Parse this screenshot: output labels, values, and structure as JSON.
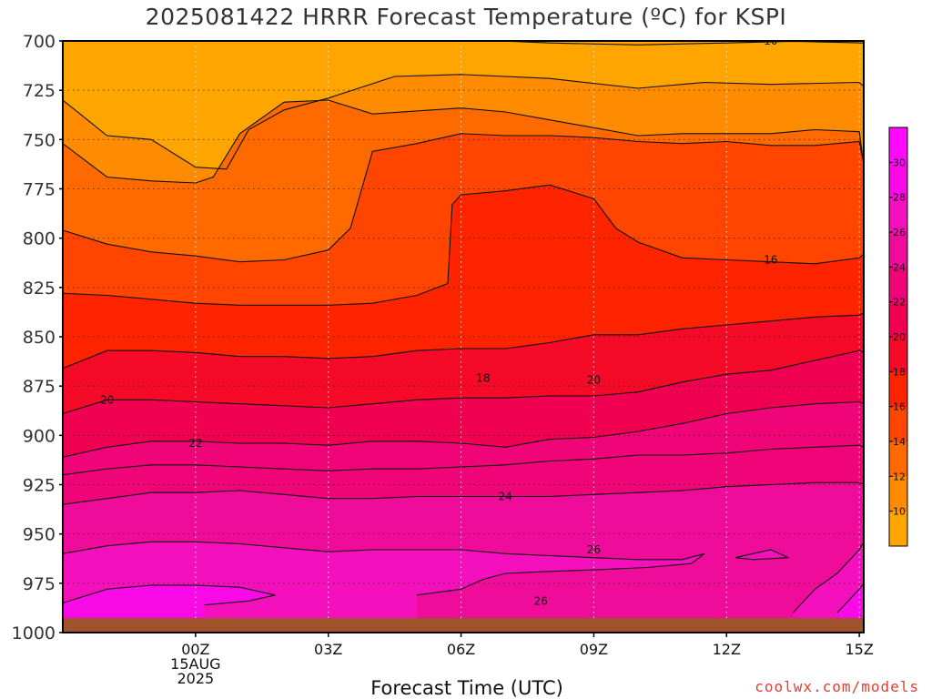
{
  "chart_data": {
    "type": "contour",
    "title": "2025081422 HRRR Forecast Temperature (ºC) for KSPI",
    "xlabel": "Forecast Time (UTC)",
    "ylabel": "",
    "y_axis": "pressure (hPa), inverted",
    "ylim": [
      1000,
      700
    ],
    "y_ticks": [
      700,
      725,
      750,
      775,
      800,
      825,
      850,
      875,
      900,
      925,
      950,
      975,
      1000
    ],
    "xlim_hours": [
      -3,
      15.1
    ],
    "x_ticks": [
      {
        "hour": 0,
        "lines": [
          "00Z",
          "15AUG",
          "2025"
        ]
      },
      {
        "hour": 3,
        "lines": [
          "03Z"
        ]
      },
      {
        "hour": 6,
        "lines": [
          "06Z"
        ]
      },
      {
        "hour": 9,
        "lines": [
          "09Z"
        ]
      },
      {
        "hour": 12,
        "lines": [
          "12Z"
        ]
      },
      {
        "hour": 15,
        "lines": [
          "15Z"
        ]
      }
    ],
    "grid": true,
    "contour_interval": 2,
    "ground_color": "#a0522d",
    "colorbar": {
      "labels": [
        "10",
        "12",
        "14",
        "16",
        "18",
        "20",
        "22",
        "24",
        "26",
        "28",
        "30"
      ],
      "colors": [
        "#ffa500",
        "#ff8c00",
        "#ff6a00",
        "#ff4500",
        "#ff2400",
        "#f50a28",
        "#f00050",
        "#ef0578",
        "#ef0c9b",
        "#f510be",
        "#fa0ae6"
      ],
      "extend_low": "#ffa500",
      "extend_high": "#ff0aff"
    },
    "contours": [
      {
        "label": "10",
        "label_at": [
          13.0,
          700
        ],
        "points": [
          [
            6.9,
            700
          ],
          [
            8.0,
            701
          ],
          [
            10.0,
            702
          ],
          [
            12.0,
            701
          ],
          [
            13.5,
            700.2
          ],
          [
            15.1,
            701
          ]
        ]
      },
      {
        "label": "12",
        "points": [
          [
            -3,
            730
          ],
          [
            -2,
            748
          ],
          [
            -1,
            750
          ],
          [
            0,
            764
          ],
          [
            0.7,
            765
          ],
          [
            1.2,
            745
          ],
          [
            2,
            735
          ],
          [
            3,
            729
          ],
          [
            4.5,
            718
          ],
          [
            6,
            717
          ],
          [
            8,
            719
          ],
          [
            10,
            724
          ],
          [
            11.5,
            721
          ],
          [
            13,
            722
          ],
          [
            15,
            721
          ],
          [
            15.1,
            723
          ]
        ]
      },
      {
        "label": "14",
        "points": [
          [
            -3,
            752
          ],
          [
            -2,
            769
          ],
          [
            -1,
            771
          ],
          [
            0,
            772
          ],
          [
            0.4,
            769
          ],
          [
            1,
            747
          ],
          [
            2,
            731
          ],
          [
            3,
            730
          ],
          [
            4,
            737
          ],
          [
            6,
            734
          ],
          [
            7,
            736
          ],
          [
            8,
            740
          ],
          [
            9,
            744
          ],
          [
            10,
            748
          ],
          [
            11,
            747
          ],
          [
            12,
            747
          ],
          [
            13,
            747
          ],
          [
            14,
            745
          ],
          [
            15,
            746
          ],
          [
            15.1,
            763
          ]
        ]
      },
      {
        "label": "16",
        "label_at": [
          13.0,
          811
        ],
        "points": [
          [
            -3,
            796
          ],
          [
            -2,
            803
          ],
          [
            -1,
            807
          ],
          [
            0,
            809
          ],
          [
            1,
            812
          ],
          [
            2,
            811
          ],
          [
            3,
            806
          ],
          [
            3.5,
            795
          ],
          [
            4,
            756
          ],
          [
            5,
            752
          ],
          [
            6,
            747
          ],
          [
            7,
            748
          ],
          [
            8,
            748
          ],
          [
            9,
            749
          ],
          [
            10,
            751
          ],
          [
            11,
            752
          ],
          [
            12,
            751
          ],
          [
            13,
            753
          ],
          [
            14,
            753
          ],
          [
            15,
            751
          ],
          [
            15.1,
            762
          ]
        ]
      },
      {
        "label": "18",
        "label_at": [
          6.5,
          871
        ],
        "points": [
          [
            -3,
            828
          ],
          [
            -2,
            829
          ],
          [
            -1,
            831
          ],
          [
            0,
            833
          ],
          [
            1,
            834
          ],
          [
            2,
            834
          ],
          [
            3,
            834
          ],
          [
            4,
            833
          ],
          [
            5,
            829
          ],
          [
            5.7,
            823
          ],
          [
            5.8,
            783
          ],
          [
            6,
            778
          ],
          [
            7,
            776
          ],
          [
            8,
            773
          ],
          [
            9,
            780
          ],
          [
            9.5,
            795
          ],
          [
            10,
            802
          ],
          [
            11,
            810
          ],
          [
            12,
            811
          ],
          [
            13,
            812
          ],
          [
            14,
            813
          ],
          [
            15,
            810
          ],
          [
            15.1,
            808
          ]
        ]
      },
      {
        "label": "20",
        "label_at": [
          9.0,
          872
        ],
        "points": [
          [
            -3,
            866
          ],
          [
            -2,
            857
          ],
          [
            -1,
            857
          ],
          [
            0,
            858
          ],
          [
            1,
            860
          ],
          [
            2,
            860
          ],
          [
            3,
            861
          ],
          [
            4,
            860
          ],
          [
            5,
            857
          ],
          [
            6,
            856
          ],
          [
            7,
            856
          ],
          [
            8,
            853
          ],
          [
            9,
            849
          ],
          [
            10,
            849
          ],
          [
            11,
            846
          ],
          [
            12,
            844
          ],
          [
            13,
            842
          ],
          [
            14,
            840
          ],
          [
            15,
            839
          ],
          [
            15.1,
            838
          ]
        ]
      },
      {
        "label": "20b",
        "label_at": [
          -2.0,
          882
        ],
        "points": [
          [
            -3,
            889
          ],
          [
            -2,
            882
          ],
          [
            -1,
            882
          ],
          [
            0,
            883
          ],
          [
            1,
            884
          ],
          [
            2,
            885
          ],
          [
            3,
            886
          ],
          [
            4,
            884
          ],
          [
            5,
            882
          ],
          [
            6,
            881
          ],
          [
            7,
            881
          ],
          [
            8,
            880
          ],
          [
            9,
            880
          ],
          [
            10,
            878
          ],
          [
            11,
            873
          ],
          [
            12,
            869
          ],
          [
            13,
            867
          ],
          [
            14,
            862
          ],
          [
            15,
            857
          ],
          [
            15.1,
            858
          ]
        ]
      },
      {
        "label": "22",
        "label_at": [
          0.0,
          904
        ],
        "points": [
          [
            -3,
            911
          ],
          [
            -2,
            906
          ],
          [
            -1,
            903
          ],
          [
            0,
            903
          ],
          [
            1,
            904
          ],
          [
            2,
            904
          ],
          [
            3,
            905
          ],
          [
            4,
            903
          ],
          [
            5,
            903
          ],
          [
            6,
            904
          ],
          [
            7,
            906
          ],
          [
            8,
            902
          ],
          [
            9,
            901
          ],
          [
            10,
            898
          ],
          [
            11,
            894
          ],
          [
            12,
            889
          ],
          [
            13,
            886
          ],
          [
            14,
            884
          ],
          [
            15,
            883
          ],
          [
            15.1,
            884
          ]
        ]
      },
      {
        "label": "22b",
        "points": [
          [
            -3,
            920
          ],
          [
            -2,
            917
          ],
          [
            -1,
            915
          ],
          [
            0,
            915
          ],
          [
            1,
            916
          ],
          [
            2,
            917
          ],
          [
            3,
            918
          ],
          [
            4,
            917
          ],
          [
            5,
            917
          ],
          [
            6,
            916
          ],
          [
            7,
            915
          ],
          [
            8,
            913
          ],
          [
            9,
            912
          ],
          [
            10,
            910
          ],
          [
            11,
            910
          ],
          [
            12,
            909
          ],
          [
            13,
            907
          ],
          [
            14,
            906
          ],
          [
            15,
            905
          ],
          [
            15.1,
            906
          ]
        ]
      },
      {
        "label": "24",
        "label_at": [
          7.0,
          931
        ],
        "points": [
          [
            -3,
            935
          ],
          [
            -2,
            932
          ],
          [
            -1,
            929
          ],
          [
            0,
            929
          ],
          [
            1,
            928
          ],
          [
            2,
            930
          ],
          [
            3,
            932
          ],
          [
            4,
            932
          ],
          [
            5,
            931
          ],
          [
            6,
            931
          ],
          [
            7,
            931
          ],
          [
            8,
            931
          ],
          [
            9,
            930
          ],
          [
            10,
            929
          ],
          [
            11,
            928
          ],
          [
            12,
            926
          ],
          [
            13,
            925
          ],
          [
            14,
            924
          ],
          [
            15,
            924
          ],
          [
            15.1,
            925
          ]
        ]
      },
      {
        "label": "26",
        "label_at": [
          9.0,
          958
        ],
        "points": [
          [
            -3,
            960
          ],
          [
            -2,
            956
          ],
          [
            -1,
            954
          ],
          [
            0,
            954
          ],
          [
            1,
            955
          ],
          [
            2,
            957
          ],
          [
            3,
            959
          ],
          [
            4,
            958
          ],
          [
            5,
            958
          ],
          [
            6,
            958
          ],
          [
            7,
            960
          ],
          [
            8,
            961
          ],
          [
            9,
            962
          ],
          [
            10,
            963
          ],
          [
            11,
            963
          ],
          [
            11.5,
            960
          ],
          [
            11.2,
            965
          ],
          [
            10.2,
            967
          ],
          [
            9.2,
            968
          ],
          [
            8,
            969
          ],
          [
            7,
            970
          ],
          [
            6.5,
            973
          ],
          [
            6,
            978
          ],
          [
            5,
            981
          ]
        ]
      },
      {
        "label": "26b",
        "label_at": [
          7.8,
          984
        ],
        "points": [
          [
            -3,
            985
          ],
          [
            -2,
            978
          ],
          [
            -1,
            976
          ],
          [
            0,
            976
          ],
          [
            1,
            977
          ],
          [
            1.8,
            981
          ],
          [
            1.2,
            984
          ],
          [
            0.2,
            986
          ]
        ]
      },
      {
        "label": "26c",
        "points": [
          [
            12.2,
            962
          ],
          [
            13,
            958
          ],
          [
            13.4,
            962
          ],
          [
            12.6,
            963
          ],
          [
            12.2,
            962
          ]
        ]
      },
      {
        "label": "26d",
        "points": [
          [
            13.5,
            990
          ],
          [
            14,
            978
          ],
          [
            14.5,
            970
          ],
          [
            15,
            958
          ],
          [
            15.1,
            954
          ]
        ]
      },
      {
        "label": "28",
        "points": [
          [
            14.5,
            990
          ],
          [
            15,
            978
          ],
          [
            15.1,
            975
          ]
        ]
      }
    ]
  },
  "credit": "coolwx.com/models"
}
